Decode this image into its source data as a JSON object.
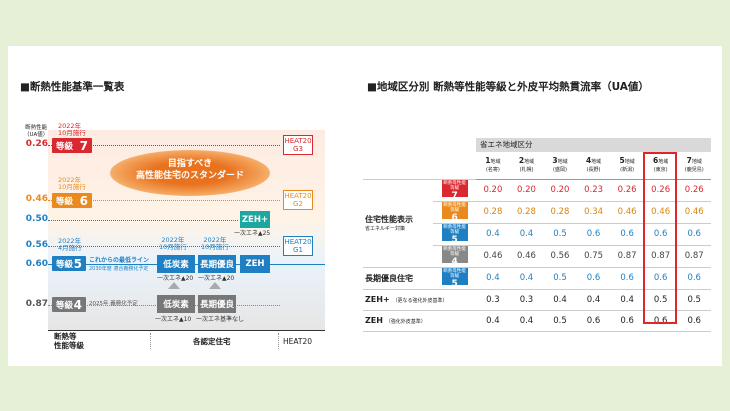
{
  "left": {
    "title": "■断熱性能基準一覧表",
    "yaxis_label": "断熱性能\n（UA値）",
    "yvalues": [
      "0.26",
      "0.46",
      "0.50",
      "0.56",
      "0.60",
      "0.87"
    ],
    "levels": [
      {
        "label": "等級",
        "num": "7",
        "note": "2022年\n10月施行",
        "color": "#d9282f"
      },
      {
        "label": "等級",
        "num": "6",
        "note": "2022年\n10月施行",
        "color": "#ea8a1e"
      },
      {
        "label": "等級",
        "num": "5",
        "note": "2022年\n4月施行",
        "color": "#1e7fc2"
      },
      {
        "label": "等級",
        "num": "4",
        "note": "2025年 義務化予定",
        "color": "#777777"
      }
    ],
    "level5_note1": "これからの最低ライン",
    "level5_note2": "2030年度 適合義務化予定",
    "bubble_line1": "目指すべき",
    "bubble_line2": "高性能住宅のスタンダード",
    "zehplus": "ZEH+",
    "zehplus_note": "一次エネ▲25",
    "date_2022_10": "2022年\n10月施行",
    "low_carbon": "低炭素",
    "long_term": "長期優良",
    "zeh": "ZEH",
    "lc_note": "一次エネ▲20",
    "lt_note": "一次エネ▲20",
    "lc_old_note": "一次エネ▲10",
    "lt_old_note": "一次エネ基準なし",
    "heat20": [
      {
        "name": "HEAT20",
        "grade": "G3"
      },
      {
        "name": "HEAT20",
        "grade": "G2"
      },
      {
        "name": "HEAT20",
        "grade": "G1"
      }
    ],
    "footer_col1": "断熱等\n性能等級",
    "footer_col2": "各認定住宅",
    "footer_col3": "HEAT20"
  },
  "right": {
    "title": "■地域区分別 断熱等性能等級と外皮平均熱貫流率（UA値）",
    "region_header": "省エネ地域区分",
    "regions": [
      {
        "n": "1",
        "sub": "地域",
        "city": "(名寄)"
      },
      {
        "n": "2",
        "sub": "地域",
        "city": "(札幌)"
      },
      {
        "n": "3",
        "sub": "地域",
        "city": "(盛岡)"
      },
      {
        "n": "4",
        "sub": "地域",
        "city": "(長野)"
      },
      {
        "n": "5",
        "sub": "地域",
        "city": "(新潟)"
      },
      {
        "n": "6",
        "sub": "地域",
        "city": "(東京)"
      },
      {
        "n": "7",
        "sub": "地域",
        "city": "(鹿児島)"
      }
    ],
    "group1_label": "住宅性能表示",
    "group1_sub": "省エネルギー対策",
    "rows": [
      {
        "badge": "断熱等性能等級",
        "num": "7",
        "color": "#d9282f",
        "vals": [
          "0.20",
          "0.20",
          "0.20",
          "0.23",
          "0.26",
          "0.26",
          "0.26"
        ],
        "textcolor": "#d9282f"
      },
      {
        "badge": "断熱等性能等級",
        "num": "6",
        "color": "#ea8a1e",
        "vals": [
          "0.28",
          "0.28",
          "0.28",
          "0.34",
          "0.46",
          "0.46",
          "0.46"
        ],
        "textcolor": "#d88512"
      },
      {
        "badge": "断熱等性能等級",
        "num": "5",
        "color": "#1e7fc2",
        "vals": [
          "0.4",
          "0.4",
          "0.5",
          "0.6",
          "0.6",
          "0.6",
          "0.6"
        ],
        "textcolor": "#1e7fc2"
      },
      {
        "badge": "断熱等性能等級",
        "num": "4",
        "color": "#888888",
        "vals": [
          "0.46",
          "0.46",
          "0.56",
          "0.75",
          "0.87",
          "0.87",
          "0.87"
        ],
        "textcolor": "#444444"
      }
    ],
    "long_label": "長期優良住宅",
    "long_row": {
      "badge": "断熱等性能等級",
      "num": "5",
      "color": "#1e7fc2",
      "vals": [
        "0.4",
        "0.4",
        "0.5",
        "0.6",
        "0.6",
        "0.6",
        "0.6"
      ]
    },
    "zehplus_label": "ZEH+",
    "zehplus_sub": "（更なる強化外皮基準）",
    "zehplus_vals": [
      "0.3",
      "0.3",
      "0.4",
      "0.4",
      "0.4",
      "0.5",
      "0.5"
    ],
    "zeh_label": "ZEH",
    "zeh_sub": "（強化外皮基準）",
    "zeh_vals": [
      "0.4",
      "0.4",
      "0.5",
      "0.6",
      "0.6",
      "0.6",
      "0.6"
    ]
  }
}
